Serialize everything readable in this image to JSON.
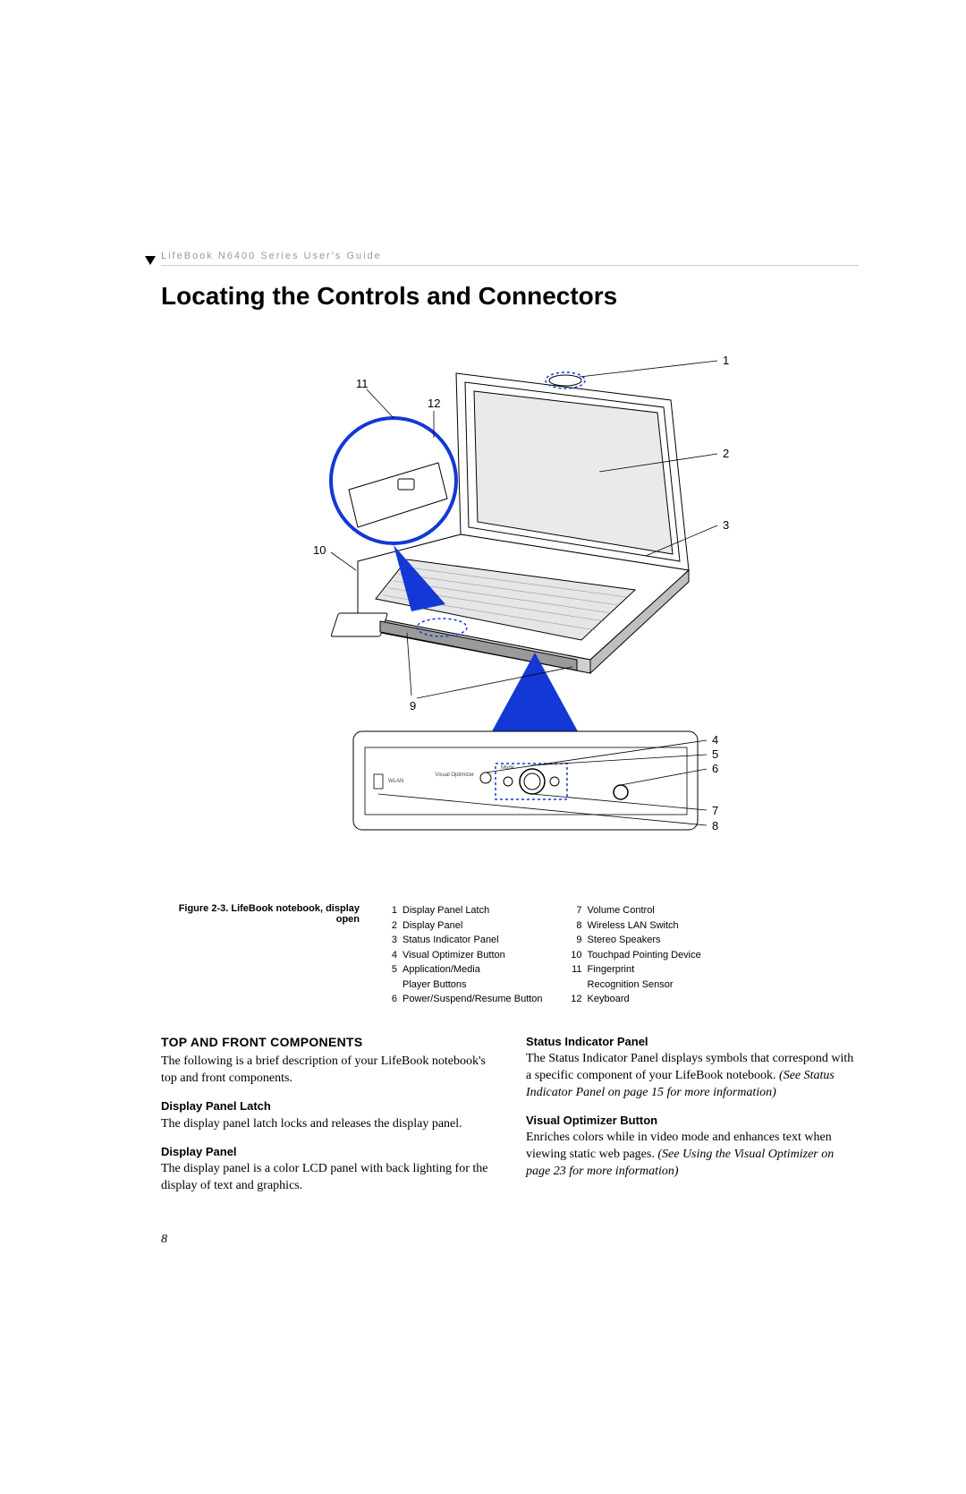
{
  "header": {
    "guide_title": "LifeBook N6400 Series User's Guide"
  },
  "heading": "Locating the Controls and Connectors",
  "figure": {
    "caption": "Figure 2-3.  LifeBook notebook, display open",
    "callout_labels": {
      "n1": "1",
      "n2": "2",
      "n3": "3",
      "n4": "4",
      "n5": "5",
      "n6": "6",
      "n7": "7",
      "n8": "8",
      "n9": "9",
      "n10": "10",
      "n11": "11",
      "n12": "12"
    },
    "detail_labels": {
      "visual_opt": "Visual  Optimizer",
      "mode": "Mode",
      "wlan": "WLAN"
    },
    "colors": {
      "highlight": "#1338d6",
      "stroke": "#000000",
      "fill": "#ffffff",
      "shade": "#d9d9d9"
    }
  },
  "legend": {
    "col1": [
      {
        "n": "1",
        "t": "Display Panel Latch"
      },
      {
        "n": "2",
        "t": "Display Panel"
      },
      {
        "n": "3",
        "t": "Status Indicator Panel"
      },
      {
        "n": "4",
        "t": "Visual Optimizer Button"
      },
      {
        "n": "5",
        "t": "Application/Media\nPlayer Buttons"
      },
      {
        "n": "6",
        "t": "Power/Suspend/Resume Button"
      }
    ],
    "col2": [
      {
        "n": "7",
        "t": "Volume Control"
      },
      {
        "n": "8",
        "t": "Wireless LAN Switch"
      },
      {
        "n": "9",
        "t": "Stereo Speakers"
      },
      {
        "n": "10",
        "t": "Touchpad Pointing Device"
      },
      {
        "n": "11",
        "t": "Fingerprint\nRecognition Sensor"
      },
      {
        "n": "12",
        "t": "Keyboard"
      }
    ]
  },
  "body": {
    "left": {
      "section_head": "TOP AND FRONT COMPONENTS",
      "intro": "The following is a brief description of your LifeBook notebook's top and front components.",
      "sub1_head": "Display Panel Latch",
      "sub1_body": "The display panel latch locks and releases the display panel.",
      "sub2_head": "Display Panel",
      "sub2_body": "The display panel is a color LCD panel with back lighting for the display of text and graphics."
    },
    "right": {
      "sub1_head": "Status Indicator Panel",
      "sub1_body": "The Status Indicator Panel displays symbols that correspond with a specific component of your LifeBook notebook. ",
      "sub1_ref": "(See Status Indicator Panel on page 15 for more information)",
      "sub2_head": "Visual Optimizer Button",
      "sub2_body": "Enriches colors while in video mode and enhances text when viewing static web pages. ",
      "sub2_ref": "(See Using the Visual Optimizer on page 23 for more information)"
    }
  },
  "page_number": "8"
}
